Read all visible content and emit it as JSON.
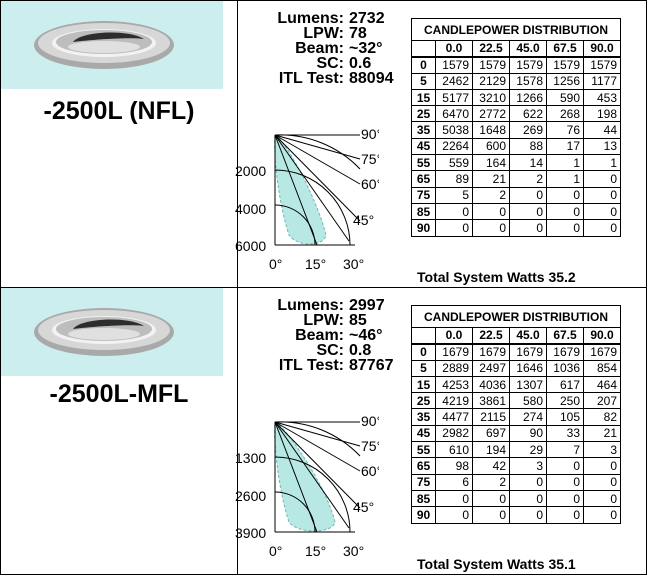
{
  "products": [
    {
      "name": "-2500L (NFL)",
      "specs": [
        {
          "label": "Lumens:",
          "value": "2732"
        },
        {
          "label": "LPW:",
          "value": "78"
        },
        {
          "label": "Beam:",
          "value": "~32°"
        },
        {
          "label": "SC:",
          "value": "0.6"
        },
        {
          "label": "ITL Test:",
          "value": "88094"
        }
      ],
      "polar": {
        "radial_labels": [
          "2000",
          "4000",
          "6000"
        ],
        "angle_labels": [
          "90°",
          "75°",
          "60°",
          "45°",
          "0°",
          "15°",
          "30°"
        ],
        "beam_spread": 0.55
      },
      "table_title": "CANDLEPOWER DISTRIBUTION",
      "columns": [
        "0.0",
        "22.5",
        "45.0",
        "67.5",
        "90.0"
      ],
      "rows": [
        {
          "angle": "0",
          "values": [
            "1579",
            "1579",
            "1579",
            "1579",
            "1579"
          ]
        },
        {
          "angle": "5",
          "values": [
            "2462",
            "2129",
            "1578",
            "1256",
            "1177"
          ]
        },
        {
          "angle": "15",
          "values": [
            "5177",
            "3210",
            "1266",
            "590",
            "453"
          ]
        },
        {
          "angle": "25",
          "values": [
            "6470",
            "2772",
            "622",
            "268",
            "198"
          ]
        },
        {
          "angle": "35",
          "values": [
            "5038",
            "1648",
            "269",
            "76",
            "44"
          ]
        },
        {
          "angle": "45",
          "values": [
            "2264",
            "600",
            "88",
            "17",
            "13"
          ]
        },
        {
          "angle": "55",
          "values": [
            "559",
            "164",
            "14",
            "1",
            "1"
          ]
        },
        {
          "angle": "65",
          "values": [
            "89",
            "21",
            "2",
            "1",
            "0"
          ]
        },
        {
          "angle": "75",
          "values": [
            "5",
            "2",
            "0",
            "0",
            "0"
          ]
        },
        {
          "angle": "85",
          "values": [
            "0",
            "0",
            "0",
            "0",
            "0"
          ]
        },
        {
          "angle": "90",
          "values": [
            "0",
            "0",
            "0",
            "0",
            "0"
          ]
        }
      ],
      "total_watts": "Total System Watts 35.2"
    },
    {
      "name": "-2500L-MFL",
      "specs": [
        {
          "label": "Lumens:",
          "value": "2997"
        },
        {
          "label": "LPW:",
          "value": "85"
        },
        {
          "label": "Beam:",
          "value": "~46°"
        },
        {
          "label": "SC:",
          "value": "0.8"
        },
        {
          "label": "ITL Test:",
          "value": "87767"
        }
      ],
      "polar": {
        "radial_labels": [
          "1300",
          "2600",
          "3900"
        ],
        "angle_labels": [
          "90°",
          "75°",
          "60°",
          "45°",
          "0°",
          "15°",
          "30°"
        ],
        "beam_spread": 1.0
      },
      "table_title": "CANDLEPOWER DISTRIBUTION",
      "columns": [
        "0.0",
        "22.5",
        "45.0",
        "67.5",
        "90.0"
      ],
      "rows": [
        {
          "angle": "0",
          "values": [
            "1679",
            "1679",
            "1679",
            "1679",
            "1679"
          ]
        },
        {
          "angle": "5",
          "values": [
            "2889",
            "2497",
            "1646",
            "1036",
            "854"
          ]
        },
        {
          "angle": "15",
          "values": [
            "4253",
            "4036",
            "1307",
            "617",
            "464"
          ]
        },
        {
          "angle": "25",
          "values": [
            "4219",
            "3861",
            "580",
            "250",
            "207"
          ]
        },
        {
          "angle": "35",
          "values": [
            "4477",
            "2115",
            "274",
            "105",
            "82"
          ]
        },
        {
          "angle": "45",
          "values": [
            "2982",
            "697",
            "90",
            "33",
            "21"
          ]
        },
        {
          "angle": "55",
          "values": [
            "610",
            "194",
            "29",
            "7",
            "3"
          ]
        },
        {
          "angle": "65",
          "values": [
            "98",
            "42",
            "3",
            "0",
            "0"
          ]
        },
        {
          "angle": "75",
          "values": [
            "6",
            "2",
            "0",
            "0",
            "0"
          ]
        },
        {
          "angle": "85",
          "values": [
            "0",
            "0",
            "0",
            "0",
            "0"
          ]
        },
        {
          "angle": "90",
          "values": [
            "0",
            "0",
            "0",
            "0",
            "0"
          ]
        }
      ],
      "total_watts": "Total System Watts 35.1"
    }
  ],
  "colors": {
    "image_bg": "#cdeeee",
    "beam_fill": "#b8e8e4",
    "trim": "#b0b0b0",
    "reflector": "#3a3a3a"
  },
  "icons": [
    "downlight-fixture-icon"
  ]
}
